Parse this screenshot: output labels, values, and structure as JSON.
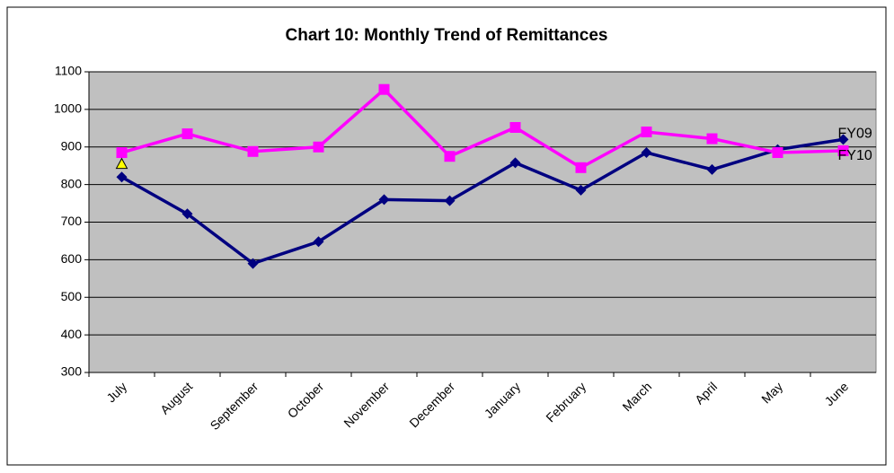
{
  "chart_data": {
    "type": "line",
    "title": "Chart 10: Monthly Trend of Remittances",
    "categories": [
      "July",
      "August",
      "September",
      "October",
      "November",
      "December",
      "January",
      "February",
      "March",
      "April",
      "May",
      "June"
    ],
    "series": [
      {
        "name": "FY09",
        "color": "#000080",
        "marker": "diamond",
        "values": [
          820,
          722,
          590,
          648,
          760,
          757,
          858,
          785,
          885,
          840,
          893,
          920
        ]
      },
      {
        "name": "FY10",
        "color": "#ff00ff",
        "marker": "square",
        "values": [
          885,
          935,
          888,
          900,
          1053,
          875,
          952,
          845,
          940,
          922,
          885,
          890
        ]
      },
      {
        "color": "#ffff00",
        "marker": "triangle",
        "values": [
          855,
          null,
          null,
          null,
          null,
          null,
          null,
          null,
          null,
          null,
          null,
          null
        ]
      }
    ],
    "ylim": [
      300,
      1100
    ],
    "yticks": [
      300,
      400,
      500,
      600,
      700,
      800,
      900,
      1000,
      1100
    ],
    "grid": true
  }
}
